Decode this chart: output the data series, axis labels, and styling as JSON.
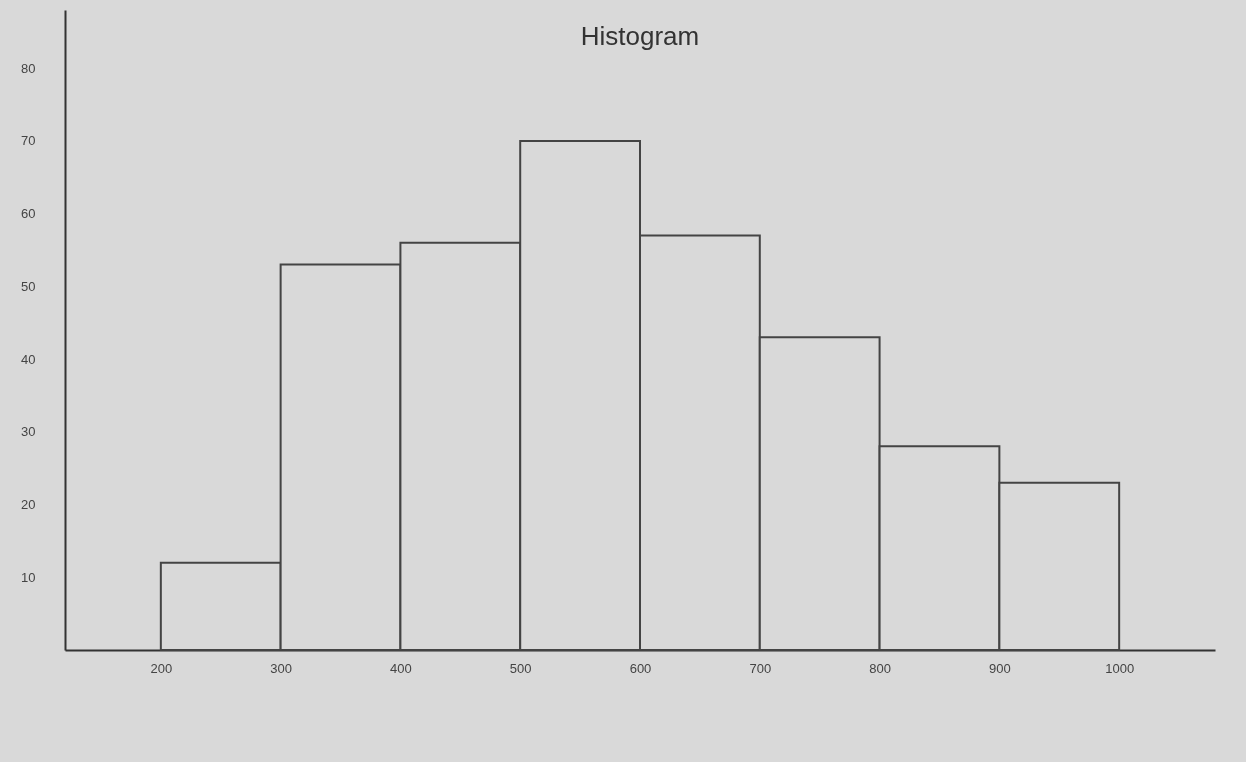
{
  "chart_data": {
    "type": "histogram",
    "title": "Histogram",
    "bins": [
      200,
      300,
      400,
      500,
      600,
      700,
      800,
      900,
      1000
    ],
    "values": [
      12,
      53,
      56,
      70,
      57,
      43,
      28,
      23
    ],
    "color": "#d9d9d9",
    "xlim": [
      120,
      1080
    ],
    "xticks": [
      200,
      300,
      400,
      500,
      600,
      700,
      800,
      900,
      1000
    ],
    "yticks": [
      10,
      20,
      30,
      40,
      50,
      60,
      70,
      80
    ],
    "ylim": [
      0,
      88
    ]
  }
}
